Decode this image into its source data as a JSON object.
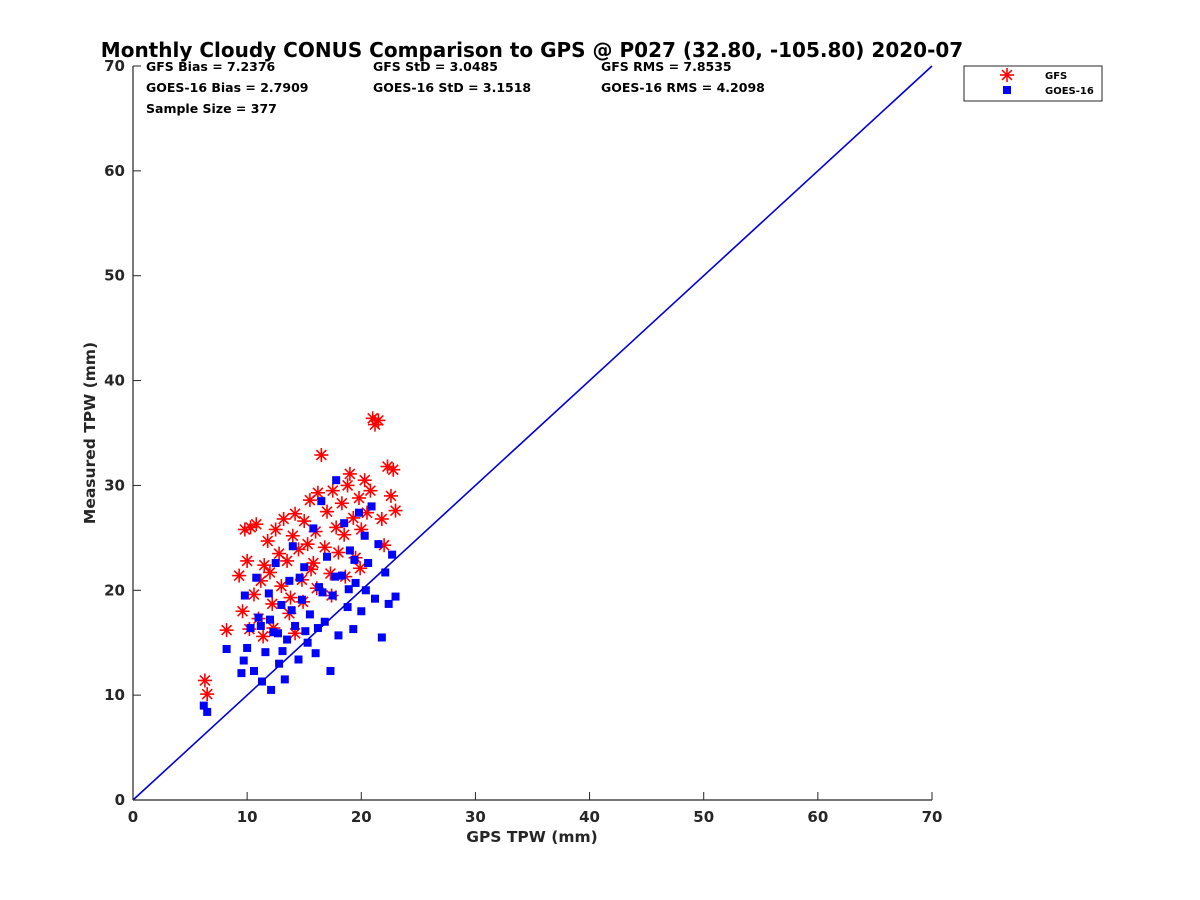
{
  "chart_data": {
    "type": "scatter",
    "title": "Monthly Cloudy CONUS Comparison to GPS @ P027 (32.80, -105.80) 2020-07",
    "xlabel": "GPS TPW (mm)",
    "ylabel": "Measured TPW (mm)",
    "xlim": [
      0,
      70
    ],
    "ylim": [
      0,
      70
    ],
    "xticks": [
      0,
      10,
      20,
      30,
      40,
      50,
      60,
      70
    ],
    "yticks": [
      0,
      10,
      20,
      30,
      40,
      50,
      60,
      70
    ],
    "grid": false,
    "legend_position": "top-right",
    "stats": [
      {
        "text": "GFS Bias = 7.2376",
        "col": 0,
        "row": 0
      },
      {
        "text": "GFS StD = 3.0485",
        "col": 1,
        "row": 0
      },
      {
        "text": "GFS RMS = 7.8535",
        "col": 2,
        "row": 0
      },
      {
        "text": "GOES-16 Bias = 2.7909",
        "col": 0,
        "row": 1
      },
      {
        "text": "GOES-16 StD = 3.1518",
        "col": 1,
        "row": 1
      },
      {
        "text": "GOES-16 RMS = 4.2098",
        "col": 2,
        "row": 1
      },
      {
        "text": "Sample Size = 377",
        "col": 0,
        "row": 2
      }
    ],
    "reference_line": {
      "from": [
        0,
        0
      ],
      "to": [
        70,
        70
      ],
      "color": "#0000dd"
    },
    "series": [
      {
        "name": "GFS",
        "marker": "asterisk",
        "color": "#ff0000",
        "points": [
          [
            6.3,
            11.4
          ],
          [
            6.5,
            10.1
          ],
          [
            8.2,
            16.2
          ],
          [
            9.3,
            21.4
          ],
          [
            9.6,
            18.0
          ],
          [
            9.8,
            25.8
          ],
          [
            10.0,
            22.8
          ],
          [
            10.3,
            26.0
          ],
          [
            10.8,
            26.3
          ],
          [
            10.2,
            16.3
          ],
          [
            10.6,
            19.6
          ],
          [
            11.0,
            17.3
          ],
          [
            11.2,
            20.9
          ],
          [
            11.5,
            22.4
          ],
          [
            11.8,
            24.7
          ],
          [
            12.0,
            21.7
          ],
          [
            12.2,
            18.7
          ],
          [
            12.5,
            25.8
          ],
          [
            12.8,
            23.5
          ],
          [
            13.0,
            20.4
          ],
          [
            13.2,
            26.8
          ],
          [
            13.5,
            22.8
          ],
          [
            13.8,
            19.3
          ],
          [
            14.0,
            25.2
          ],
          [
            14.2,
            27.3
          ],
          [
            14.5,
            23.9
          ],
          [
            14.8,
            21.0
          ],
          [
            15.0,
            26.6
          ],
          [
            15.3,
            24.4
          ],
          [
            15.5,
            28.6
          ],
          [
            15.8,
            22.6
          ],
          [
            16.0,
            25.6
          ],
          [
            16.2,
            29.3
          ],
          [
            16.5,
            32.9
          ],
          [
            16.8,
            24.1
          ],
          [
            17.0,
            27.5
          ],
          [
            17.3,
            21.6
          ],
          [
            17.5,
            29.5
          ],
          [
            17.8,
            26.0
          ],
          [
            18.0,
            23.6
          ],
          [
            18.3,
            28.3
          ],
          [
            18.5,
            25.3
          ],
          [
            18.8,
            30.0
          ],
          [
            19.0,
            31.1
          ],
          [
            19.3,
            26.9
          ],
          [
            19.5,
            23.1
          ],
          [
            19.8,
            28.8
          ],
          [
            20.0,
            25.8
          ],
          [
            20.3,
            30.5
          ],
          [
            20.5,
            27.4
          ],
          [
            20.8,
            29.5
          ],
          [
            21.0,
            36.4
          ],
          [
            21.2,
            35.8
          ],
          [
            21.5,
            36.2
          ],
          [
            21.8,
            26.8
          ],
          [
            22.0,
            24.3
          ],
          [
            22.3,
            31.8
          ],
          [
            22.6,
            29.0
          ],
          [
            22.8,
            31.5
          ],
          [
            23.0,
            27.6
          ],
          [
            12.3,
            16.4
          ],
          [
            13.7,
            17.8
          ],
          [
            14.9,
            18.9
          ],
          [
            16.1,
            20.2
          ],
          [
            17.4,
            19.5
          ],
          [
            18.6,
            21.3
          ],
          [
            11.4,
            15.6
          ],
          [
            14.2,
            15.9
          ],
          [
            15.6,
            22.0
          ],
          [
            19.9,
            22.1
          ]
        ]
      },
      {
        "name": "GOES-16",
        "marker": "square",
        "color": "#0000ff",
        "points": [
          [
            6.2,
            9.0
          ],
          [
            6.5,
            8.4
          ],
          [
            8.2,
            14.4
          ],
          [
            9.5,
            12.1
          ],
          [
            9.7,
            13.3
          ],
          [
            9.8,
            19.5
          ],
          [
            10.0,
            14.5
          ],
          [
            10.3,
            16.4
          ],
          [
            10.6,
            12.3
          ],
          [
            10.8,
            21.2
          ],
          [
            11.0,
            17.4
          ],
          [
            11.3,
            11.3
          ],
          [
            11.6,
            14.1
          ],
          [
            11.9,
            19.7
          ],
          [
            12.1,
            10.5
          ],
          [
            12.3,
            16.0
          ],
          [
            12.5,
            22.6
          ],
          [
            12.8,
            13.0
          ],
          [
            13.0,
            18.6
          ],
          [
            13.3,
            11.5
          ],
          [
            13.5,
            15.3
          ],
          [
            13.7,
            20.9
          ],
          [
            14.0,
            24.2
          ],
          [
            14.2,
            16.6
          ],
          [
            14.5,
            13.4
          ],
          [
            14.8,
            19.1
          ],
          [
            15.0,
            22.2
          ],
          [
            15.3,
            15.0
          ],
          [
            15.5,
            17.7
          ],
          [
            15.8,
            25.9
          ],
          [
            16.0,
            14.0
          ],
          [
            16.3,
            20.3
          ],
          [
            16.5,
            28.5
          ],
          [
            16.8,
            17.0
          ],
          [
            17.0,
            23.2
          ],
          [
            17.3,
            12.3
          ],
          [
            17.5,
            19.5
          ],
          [
            17.8,
            30.5
          ],
          [
            18.0,
            15.7
          ],
          [
            18.3,
            21.4
          ],
          [
            18.5,
            26.4
          ],
          [
            18.8,
            18.4
          ],
          [
            19.0,
            23.8
          ],
          [
            19.3,
            16.3
          ],
          [
            19.5,
            20.7
          ],
          [
            19.8,
            27.4
          ],
          [
            20.0,
            18.0
          ],
          [
            20.3,
            25.2
          ],
          [
            20.6,
            22.6
          ],
          [
            20.9,
            28.0
          ],
          [
            21.2,
            19.2
          ],
          [
            21.5,
            24.4
          ],
          [
            21.8,
            15.5
          ],
          [
            22.1,
            21.7
          ],
          [
            22.4,
            18.7
          ],
          [
            22.7,
            23.4
          ],
          [
            23.0,
            19.4
          ],
          [
            12.0,
            17.2
          ],
          [
            13.9,
            18.1
          ],
          [
            15.1,
            16.1
          ],
          [
            16.6,
            19.8
          ],
          [
            17.7,
            21.3
          ],
          [
            18.9,
            20.1
          ],
          [
            14.6,
            21.2
          ],
          [
            12.7,
            15.9
          ],
          [
            11.2,
            16.6
          ],
          [
            16.2,
            16.4
          ],
          [
            19.4,
            22.9
          ],
          [
            20.4,
            20.0
          ],
          [
            13.1,
            14.2
          ]
        ]
      }
    ]
  }
}
